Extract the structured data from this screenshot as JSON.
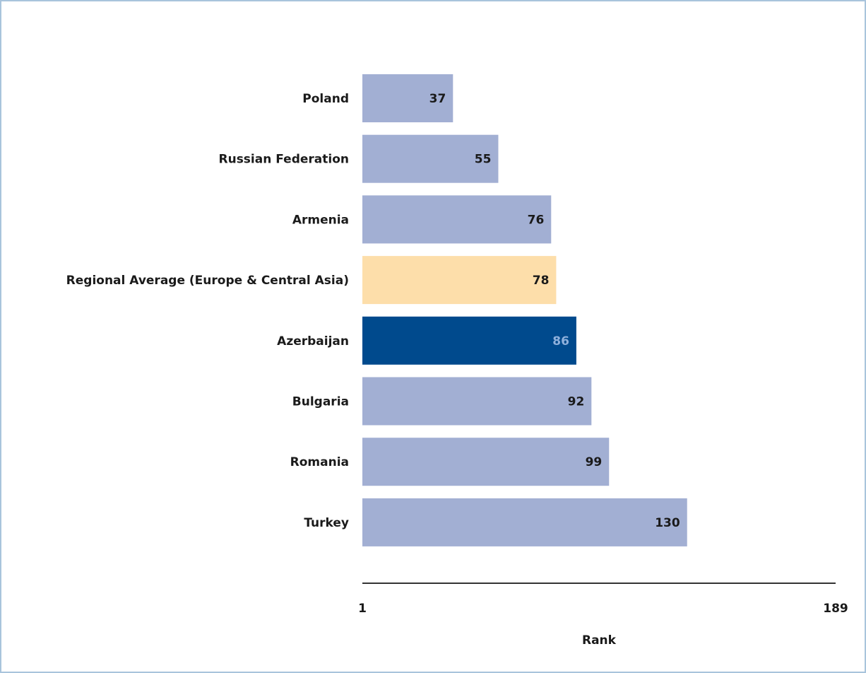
{
  "chart_data": {
    "type": "bar",
    "orientation": "horizontal",
    "categories": [
      "Poland",
      "Russian Federation",
      "Armenia",
      "Regional Average (Europe & Central Asia)",
      "Azerbaijan",
      "Bulgaria",
      "Romania",
      "Turkey"
    ],
    "values": [
      37,
      55,
      76,
      78,
      86,
      92,
      99,
      130
    ],
    "value_labels": [
      "37",
      "55",
      "76",
      "78",
      "86",
      "92",
      "99",
      "130"
    ],
    "bar_colors": [
      "#a2afd3",
      "#a2afd3",
      "#a2afd3",
      "#fddeaa",
      "#004a8d",
      "#a2afd3",
      "#a2afd3",
      "#a2afd3"
    ],
    "value_label_colors": [
      "#1a1a1a",
      "#1a1a1a",
      "#1a1a1a",
      "#1a1a1a",
      "#8fb1dc",
      "#1a1a1a",
      "#1a1a1a",
      "#1a1a1a"
    ],
    "xlabel": "Rank",
    "xlim": [
      1,
      189
    ],
    "xticks": [
      "1",
      "189"
    ],
    "grid": false,
    "legend": "none"
  }
}
